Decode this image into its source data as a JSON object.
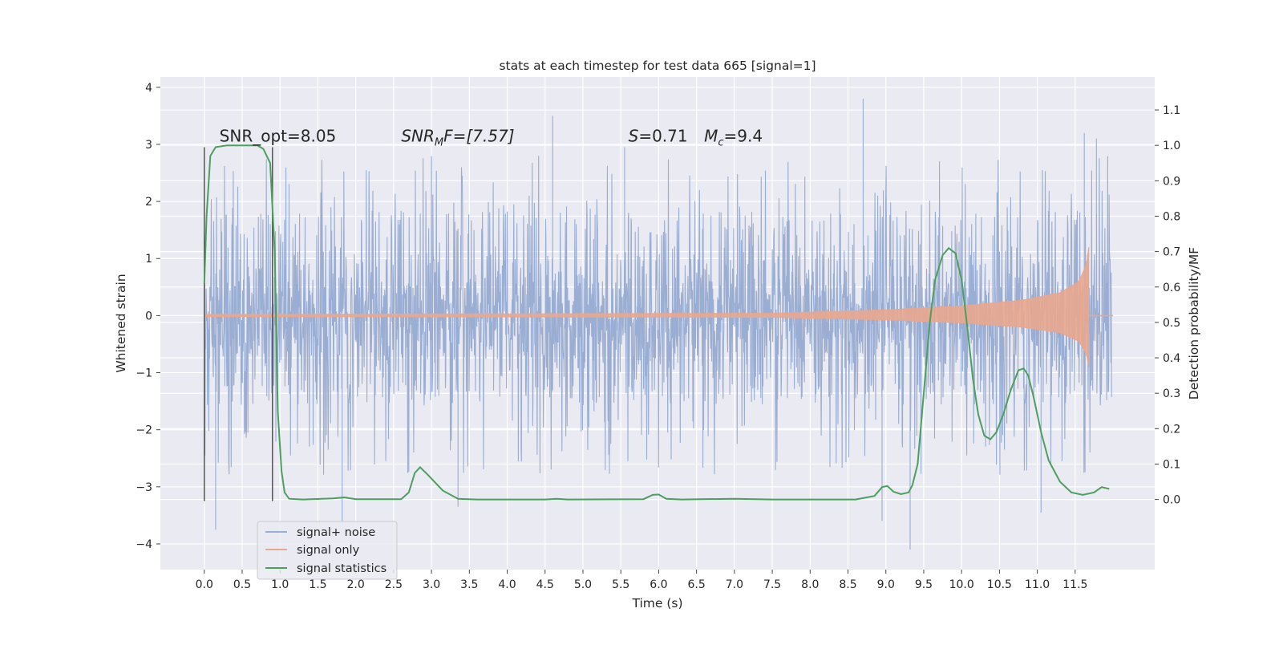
{
  "chart_data": {
    "type": "line",
    "title": "stats at each timestep for test data 665 [signal=1]",
    "xlabel": "Time (s)",
    "ylabel": "Whitened strain",
    "ylabel_right": "Detection probability/MF",
    "xlim": [
      -0.58,
      12.55
    ],
    "ylim": [
      -4.45,
      4.18
    ],
    "ylim_right": [
      -0.198,
      1.193
    ],
    "x_ticks": [
      "0.0",
      "0.5",
      "1.0",
      "1.5",
      "2.0",
      "2.5",
      "3.0",
      "3.5",
      "4.0",
      "4.5",
      "5.0",
      "5.5",
      "6.0",
      "6.5",
      "7.0",
      "7.5",
      "8.0",
      "8.5",
      "9.0",
      "9.5",
      "10.0",
      "10.5",
      "11.0",
      "11.5"
    ],
    "y_ticks": [
      "−4",
      "−3",
      "−2",
      "−1",
      "0",
      "1",
      "2",
      "3",
      "4"
    ],
    "y_ticks_right": [
      "0.0",
      "0.1",
      "0.2",
      "0.3",
      "0.4",
      "0.5",
      "0.6",
      "0.7",
      "0.8",
      "0.9",
      "1.0",
      "1.1"
    ],
    "grid": true,
    "legend_position": "lower-left",
    "annotations": [
      {
        "text": "SNR_opt=8.05",
        "x": 0.2,
        "y": 3.05
      },
      {
        "text_main": "SNR",
        "text_sub": "M",
        "text_tail": "F=[7.57]",
        "x": 2.6,
        "y": 3.05
      },
      {
        "text_main": "S",
        "text_tail": "=0.71",
        "x": 5.6,
        "y": 3.05
      },
      {
        "text_main": "M",
        "text_sub": "c",
        "text_tail": "=9.4",
        "x": 6.6,
        "y": 3.05
      }
    ],
    "vertical_lines": [
      {
        "x": 0.0,
        "y": [
          -3.25,
          2.95
        ]
      },
      {
        "x": 0.9,
        "y": [
          -3.25,
          2.95
        ]
      }
    ],
    "series": [
      {
        "name": "signal+ noise",
        "color": "#9aadd3",
        "axis": "left",
        "x_range": [
          0.0,
          11.98
        ],
        "envelope_typical": [
          -1.5,
          1.75
        ],
        "extremes": [
          {
            "x": 0.15,
            "y": -3.75
          },
          {
            "x": 1.82,
            "y": -3.65
          },
          {
            "x": 3.35,
            "y": -3.35
          },
          {
            "x": 4.6,
            "y": 3.5
          },
          {
            "x": 5.55,
            "y": 2.95
          },
          {
            "x": 8.7,
            "y": 3.8
          },
          {
            "x": 8.95,
            "y": -3.6
          },
          {
            "x": 9.32,
            "y": -4.1
          },
          {
            "x": 11.05,
            "y": -3.45
          },
          {
            "x": 11.62,
            "y": 3.2
          },
          {
            "x": 11.78,
            "y": 3.1
          }
        ]
      },
      {
        "name": "signal only",
        "color": "#e8a78e",
        "axis": "left",
        "x_range": [
          0.0,
          11.68
        ],
        "amplitude_points": [
          [
            0.0,
            0.02
          ],
          [
            7.5,
            0.04
          ],
          [
            9.0,
            0.1
          ],
          [
            10.0,
            0.17
          ],
          [
            10.8,
            0.27
          ],
          [
            11.3,
            0.4
          ],
          [
            11.55,
            0.6
          ],
          [
            11.65,
            0.9
          ],
          [
            11.68,
            1.2
          ]
        ]
      },
      {
        "name": "signal statistics",
        "color": "#4c9f5e",
        "axis": "right",
        "points": [
          [
            0.0,
            0.61
          ],
          [
            0.03,
            0.8
          ],
          [
            0.08,
            0.97
          ],
          [
            0.15,
            0.995
          ],
          [
            0.3,
            1.0
          ],
          [
            0.7,
            1.0
          ],
          [
            0.78,
            0.99
          ],
          [
            0.87,
            0.95
          ],
          [
            0.93,
            0.7
          ],
          [
            0.97,
            0.25
          ],
          [
            1.02,
            0.08
          ],
          [
            1.06,
            0.02
          ],
          [
            1.12,
            0.002
          ],
          [
            1.3,
            0.0
          ],
          [
            1.7,
            0.003
          ],
          [
            1.85,
            0.006
          ],
          [
            2.0,
            0.001
          ],
          [
            2.6,
            0.001
          ],
          [
            2.7,
            0.02
          ],
          [
            2.78,
            0.075
          ],
          [
            2.85,
            0.091
          ],
          [
            2.95,
            0.07
          ],
          [
            3.15,
            0.025
          ],
          [
            3.35,
            0.002
          ],
          [
            3.6,
            0.0
          ],
          [
            4.5,
            0.0
          ],
          [
            4.65,
            0.002
          ],
          [
            4.8,
            0.0
          ],
          [
            5.8,
            0.001
          ],
          [
            5.92,
            0.013
          ],
          [
            6.0,
            0.014
          ],
          [
            6.1,
            0.002
          ],
          [
            6.3,
            0.0
          ],
          [
            7.0,
            0.002
          ],
          [
            7.5,
            0.0
          ],
          [
            8.6,
            0.0
          ],
          [
            8.85,
            0.01
          ],
          [
            8.95,
            0.035
          ],
          [
            9.02,
            0.038
          ],
          [
            9.1,
            0.022
          ],
          [
            9.2,
            0.015
          ],
          [
            9.3,
            0.02
          ],
          [
            9.35,
            0.04
          ],
          [
            9.42,
            0.1
          ],
          [
            9.5,
            0.3
          ],
          [
            9.58,
            0.5
          ],
          [
            9.65,
            0.62
          ],
          [
            9.75,
            0.69
          ],
          [
            9.83,
            0.71
          ],
          [
            9.92,
            0.695
          ],
          [
            10.0,
            0.62
          ],
          [
            10.08,
            0.48
          ],
          [
            10.15,
            0.34
          ],
          [
            10.22,
            0.24
          ],
          [
            10.3,
            0.18
          ],
          [
            10.38,
            0.17
          ],
          [
            10.46,
            0.19
          ],
          [
            10.55,
            0.24
          ],
          [
            10.65,
            0.31
          ],
          [
            10.75,
            0.365
          ],
          [
            10.82,
            0.37
          ],
          [
            10.88,
            0.35
          ],
          [
            10.95,
            0.29
          ],
          [
            11.05,
            0.19
          ],
          [
            11.15,
            0.11
          ],
          [
            11.3,
            0.05
          ],
          [
            11.45,
            0.02
          ],
          [
            11.6,
            0.013
          ],
          [
            11.75,
            0.02
          ],
          [
            11.85,
            0.035
          ],
          [
            11.95,
            0.03
          ]
        ]
      }
    ]
  }
}
